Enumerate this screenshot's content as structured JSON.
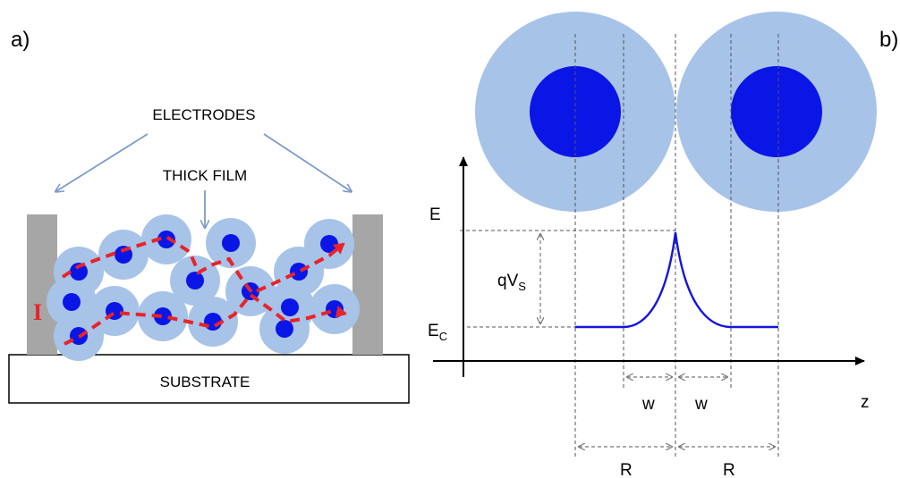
{
  "panel_a": {
    "label": "a)",
    "electrodes_label": "ELECTRODES",
    "film_label": "THICK FILM",
    "current_label": "I",
    "substrate_label": "SUBSTRATE"
  },
  "panel_b": {
    "label": "b)",
    "energy_axis_label": "E",
    "position_axis_label": "z",
    "barrier_label_main": "qV",
    "barrier_label_sub": "S",
    "band_edge_label_main": "E",
    "band_edge_label_sub": "C",
    "depletion_width_left": "w",
    "depletion_width_right": "w",
    "radius_left": "R",
    "radius_right": "R"
  },
  "colors": {
    "grain_shell": "#a7c3e8",
    "grain_core": "#0a16e6",
    "electrode": "#a6a6a6",
    "current_path": "#e8232a",
    "band_curve": "#1414e0",
    "arrow": "#7d9ac9"
  }
}
